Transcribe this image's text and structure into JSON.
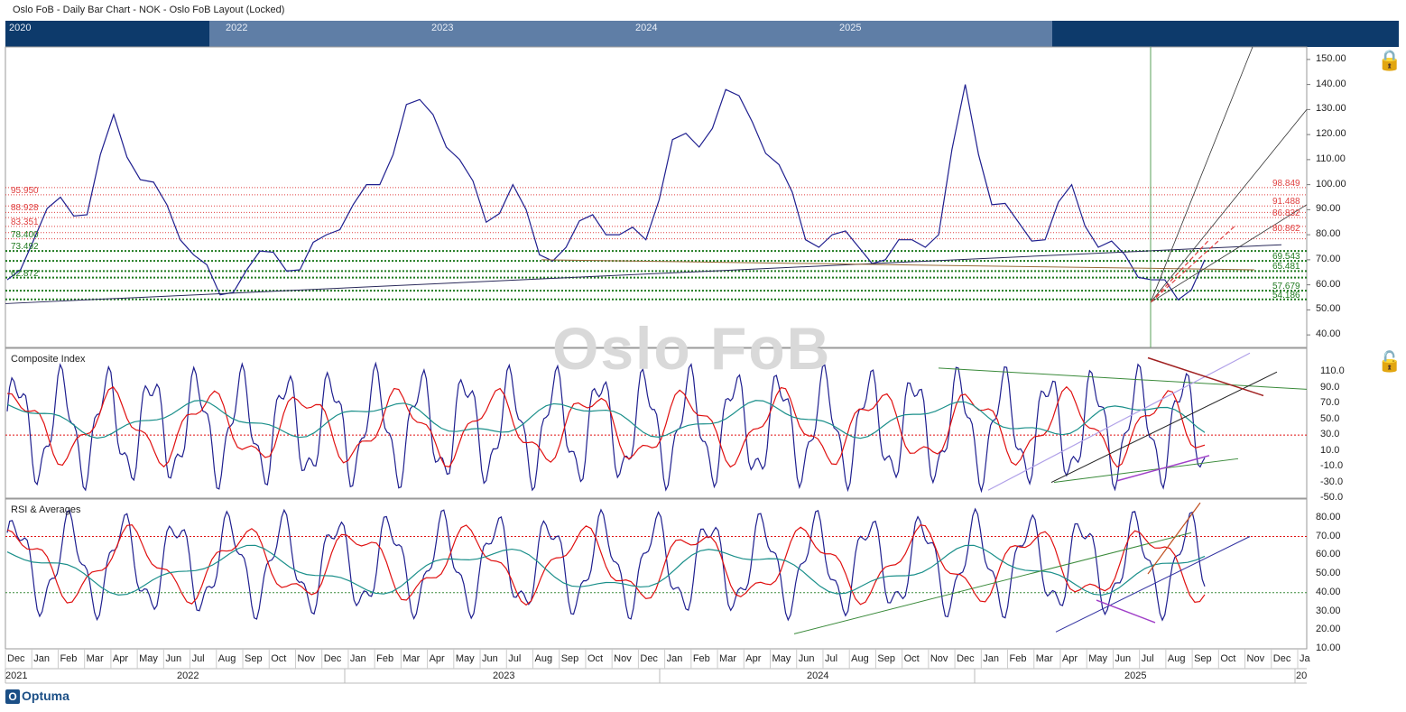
{
  "header": {
    "title": "Oslo FoB - Daily Bar Chart - NOK - Oslo FoB Layout (Locked)"
  },
  "navigator": {
    "years": [
      "2020",
      "2022",
      "2023",
      "2024",
      "2025"
    ]
  },
  "watermark": "Oslo FoB",
  "footer": {
    "logo": "Optuma",
    "logo_mark": "O"
  },
  "colors": {
    "price": "#1f1f8f",
    "red_ma": "#e01010",
    "teal_ma": "#1a8f8a",
    "resist": "#e04040",
    "support": "#1f7a1f",
    "nav_bg": "#0d3a6b"
  },
  "chart_data": [
    {
      "type": "line",
      "title": "",
      "x": [
        "Dec 2021",
        "Jan 2022",
        "Feb",
        "Mar",
        "Apr",
        "May",
        "Jun",
        "Jul",
        "Aug",
        "Sep",
        "Oct",
        "Nov",
        "Dec",
        "Jan 2023",
        "Feb",
        "Mar",
        "Apr",
        "May",
        "Jun",
        "Jul",
        "Aug",
        "Sep",
        "Oct",
        "Nov",
        "Dec",
        "Jan 2024",
        "Feb",
        "Mar",
        "Apr",
        "May",
        "Jun",
        "Jul",
        "Aug",
        "Sep",
        "Oct",
        "Nov",
        "Dec",
        "Jan 2025",
        "Feb",
        "Mar",
        "Apr",
        "May",
        "Jun",
        "Jul",
        "Aug",
        "Sep"
      ],
      "series": [
        {
          "values": [
            62,
            78,
            95,
            88,
            128,
            102,
            92,
            72,
            56,
            66,
            73,
            66,
            80,
            92,
            100,
            132,
            128,
            110,
            85,
            100,
            72,
            75,
            88,
            80,
            78,
            118,
            115,
            138,
            125,
            108,
            78,
            80,
            75,
            70,
            78,
            80,
            140,
            92,
            85,
            78,
            100,
            75,
            72,
            62,
            54,
            70
          ]
        }
      ],
      "ylim": [
        35,
        155
      ],
      "yticks": [
        "150.00",
        "140.00",
        "130.00",
        "120.00",
        "110.00",
        "100.00",
        "90.00",
        "80.00",
        "70.00",
        "60.00",
        "50.00",
        "40.00"
      ],
      "resistance_levels": [
        "98.849",
        "95.950",
        "91.488",
        "88.928",
        "86.832",
        "83.351",
        "80.862",
        "78.400"
      ],
      "support_levels": [
        "73.492",
        "69.543",
        "65.481",
        "62.872",
        "57.679",
        "54.186"
      ]
    },
    {
      "type": "line",
      "title": "Composite Index",
      "ylim": [
        -50,
        140
      ],
      "yticks": [
        "110.0",
        "90.0",
        "70.0",
        "50.0",
        "30.0",
        "10.0",
        "-10.0",
        "-30.0",
        "-50.0"
      ]
    },
    {
      "type": "line",
      "title": "RSI & Averages",
      "ylim": [
        10,
        90
      ],
      "yticks": [
        "80.00",
        "70.00",
        "60.00",
        "50.00",
        "40.00",
        "30.00",
        "20.00",
        "10.00"
      ]
    }
  ],
  "xaxis": {
    "months": [
      "Dec",
      "Jan",
      "Feb",
      "Mar",
      "Apr",
      "May",
      "Jun",
      "Jul",
      "Aug",
      "Sep",
      "Oct",
      "Nov",
      "Dec",
      "Jan",
      "Feb",
      "Mar",
      "Apr",
      "May",
      "Jun",
      "Jul",
      "Aug",
      "Sep",
      "Oct",
      "Nov",
      "Dec",
      "Jan",
      "Feb",
      "Mar",
      "Apr",
      "May",
      "Jun",
      "Jul",
      "Aug",
      "Sep",
      "Oct",
      "Nov",
      "Dec",
      "Jan",
      "Feb",
      "Mar",
      "Apr",
      "May",
      "Jun",
      "Jul",
      "Aug",
      "Sep",
      "Oct",
      "Nov",
      "Dec",
      "Ja"
    ],
    "years": [
      "2021",
      "2022",
      "2023",
      "2024",
      "2025",
      "20"
    ]
  }
}
